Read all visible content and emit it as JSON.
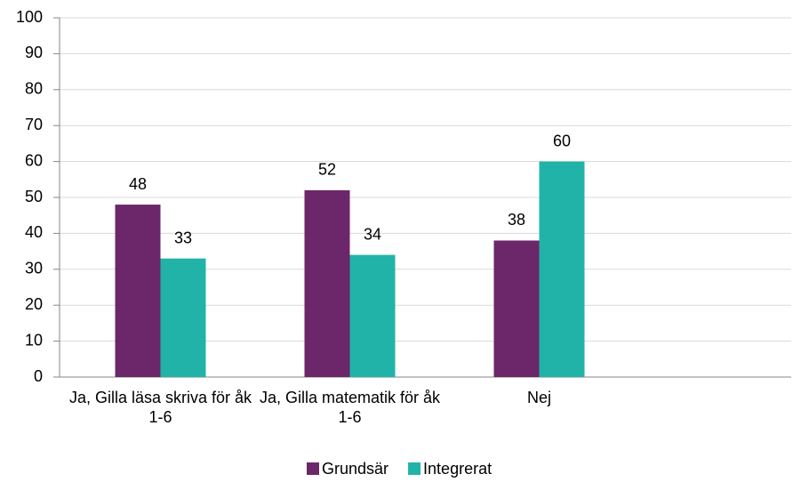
{
  "chart_data": {
    "type": "bar",
    "categories": [
      "Ja, Gilla läsa skriva för åk 1-6",
      "Ja, Gilla matematik för åk 1-6",
      "Nej",
      null
    ],
    "series": [
      {
        "name": "Grundsär",
        "color": "#6b2769",
        "values": [
          48,
          52,
          38,
          null
        ]
      },
      {
        "name": "Integrerat",
        "color": "#22b3a8",
        "values": [
          33,
          34,
          60,
          null
        ]
      }
    ],
    "ylim": [
      0,
      100
    ],
    "yticks": [
      0,
      10,
      20,
      30,
      40,
      50,
      60,
      70,
      80,
      90,
      100
    ],
    "grid": true,
    "legend": "bottom"
  }
}
